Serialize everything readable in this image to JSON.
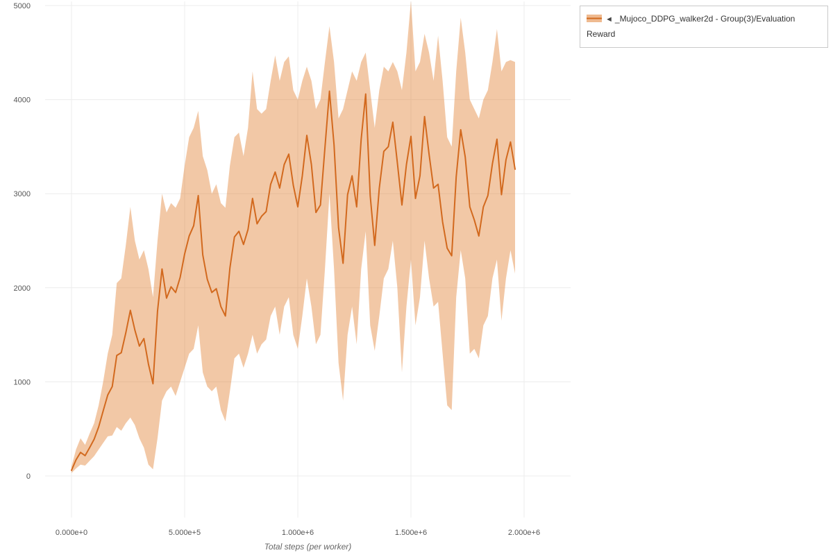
{
  "legend": {
    "toggle_icon": "◄",
    "label": "_Mujoco_DDPG_walker2d - Group(3)/Evaluation Reward"
  },
  "axes": {
    "x_title": "Total steps (per worker)",
    "x_ticks": [
      "0.000e+0",
      "5.000e+5",
      "1.000e+6",
      "1.500e+6",
      "2.000e+6"
    ],
    "x_tick_values": [
      0,
      500000,
      1000000,
      1500000,
      2000000
    ],
    "y_ticks": [
      "0",
      "1000",
      "2000",
      "3000",
      "4000",
      "5000"
    ],
    "y_tick_values": [
      0,
      1000,
      2000,
      3000,
      4000,
      5000
    ]
  },
  "colors": {
    "line": "#d2691e",
    "band": "#e07b2a",
    "band_opacity": 0.42,
    "grid": "#ececec",
    "tick_text": "#555555",
    "axis_title": "#666666"
  },
  "chart_data": {
    "type": "line",
    "title": "",
    "xlabel": "Total steps (per worker)",
    "ylabel": "",
    "xlim": [
      -120000,
      2200000
    ],
    "ylim": [
      0,
      5000
    ],
    "grid": true,
    "legend_position": "top-right",
    "series_name": "_Mujoco_DDPG_walker2d - Group(3)/Evaluation Reward",
    "band": true,
    "x": [
      0,
      20000,
      40000,
      60000,
      80000,
      100000,
      120000,
      140000,
      160000,
      180000,
      200000,
      220000,
      240000,
      260000,
      280000,
      300000,
      320000,
      340000,
      360000,
      380000,
      400000,
      420000,
      440000,
      460000,
      480000,
      500000,
      520000,
      540000,
      560000,
      580000,
      600000,
      620000,
      640000,
      660000,
      680000,
      700000,
      720000,
      740000,
      760000,
      780000,
      800000,
      820000,
      840000,
      860000,
      880000,
      900000,
      920000,
      940000,
      960000,
      980000,
      1000000,
      1020000,
      1040000,
      1060000,
      1080000,
      1100000,
      1120000,
      1140000,
      1160000,
      1180000,
      1200000,
      1220000,
      1240000,
      1260000,
      1280000,
      1300000,
      1320000,
      1340000,
      1360000,
      1380000,
      1400000,
      1420000,
      1440000,
      1460000,
      1480000,
      1500000,
      1520000,
      1540000,
      1560000,
      1580000,
      1600000,
      1620000,
      1640000,
      1660000,
      1680000,
      1700000,
      1720000,
      1740000,
      1760000,
      1780000,
      1800000,
      1820000,
      1840000,
      1860000,
      1880000,
      1900000,
      1920000,
      1940000,
      1960000
    ],
    "mean": [
      60,
      170,
      250,
      215,
      300,
      390,
      520,
      690,
      860,
      950,
      1280,
      1310,
      1520,
      1760,
      1550,
      1380,
      1460,
      1190,
      980,
      1750,
      2200,
      1890,
      2010,
      1950,
      2110,
      2360,
      2550,
      2660,
      2980,
      2350,
      2090,
      1950,
      1990,
      1800,
      1700,
      2210,
      2540,
      2600,
      2460,
      2620,
      2950,
      2680,
      2760,
      2810,
      3100,
      3230,
      3060,
      3310,
      3420,
      3090,
      2860,
      3190,
      3620,
      3310,
      2800,
      2880,
      3490,
      4090,
      3520,
      2640,
      2260,
      2990,
      3190,
      2860,
      3580,
      4060,
      2980,
      2450,
      3060,
      3450,
      3500,
      3760,
      3330,
      2880,
      3310,
      3610,
      2950,
      3190,
      3820,
      3420,
      3060,
      3100,
      2700,
      2420,
      2340,
      3180,
      3680,
      3390,
      2860,
      2720,
      2550,
      2860,
      2980,
      3320,
      3580,
      2990,
      3360,
      3550,
      3260
    ],
    "lower": [
      30,
      80,
      120,
      110,
      160,
      210,
      280,
      350,
      420,
      430,
      520,
      480,
      560,
      620,
      540,
      400,
      300,
      120,
      70,
      400,
      800,
      900,
      950,
      850,
      1000,
      1150,
      1300,
      1350,
      1600,
      1100,
      950,
      900,
      950,
      700,
      580,
      900,
      1250,
      1300,
      1150,
      1300,
      1500,
      1300,
      1400,
      1450,
      1700,
      1800,
      1500,
      1800,
      1900,
      1500,
      1350,
      1700,
      2100,
      1800,
      1400,
      1500,
      2200,
      3000,
      2200,
      1200,
      800,
      1500,
      1800,
      1400,
      2200,
      2600,
      1600,
      1330,
      1700,
      2100,
      2200,
      2500,
      2000,
      1100,
      1800,
      2300,
      1600,
      1900,
      2500,
      2100,
      1800,
      1850,
      1300,
      750,
      700,
      1900,
      2400,
      2100,
      1300,
      1350,
      1250,
      1600,
      1700,
      2100,
      2300,
      1650,
      2100,
      2400,
      2150
    ],
    "upper": [
      100,
      280,
      400,
      330,
      450,
      560,
      750,
      1000,
      1300,
      1500,
      2050,
      2100,
      2450,
      2860,
      2500,
      2300,
      2400,
      2200,
      1900,
      2500,
      3000,
      2800,
      2900,
      2850,
      2950,
      3300,
      3600,
      3700,
      3880,
      3400,
      3250,
      3000,
      3100,
      2900,
      2850,
      3300,
      3600,
      3650,
      3400,
      3700,
      4300,
      3900,
      3850,
      3900,
      4200,
      4470,
      4200,
      4400,
      4460,
      4100,
      4000,
      4200,
      4350,
      4200,
      3900,
      4000,
      4400,
      4780,
      4400,
      3800,
      3900,
      4100,
      4300,
      4200,
      4400,
      4500,
      4100,
      3700,
      4100,
      4350,
      4300,
      4400,
      4300,
      4100,
      4500,
      5050,
      4300,
      4400,
      4700,
      4500,
      4200,
      4680,
      4200,
      3600,
      3500,
      4300,
      4870,
      4500,
      4000,
      3900,
      3800,
      4000,
      4100,
      4400,
      4750,
      4300,
      4400,
      4420,
      4400
    ]
  }
}
